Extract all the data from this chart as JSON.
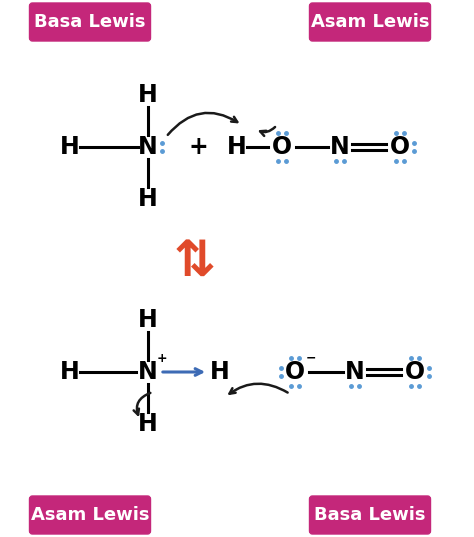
{
  "bg_color": "#ffffff",
  "magenta": "#c4277a",
  "blue_dot": "#5b9bd5",
  "arrow_color": "#1a1a1a",
  "red_color": "#e04a2a",
  "blue_arrow": "#3d6bb5",
  "label_top_left": "Basa Lewis",
  "label_top_right": "Asam Lewis",
  "label_bot_left": "Asam Lewis",
  "label_bot_right": "Basa Lewis",
  "figsize": [
    4.74,
    5.37
  ],
  "dpi": 100
}
